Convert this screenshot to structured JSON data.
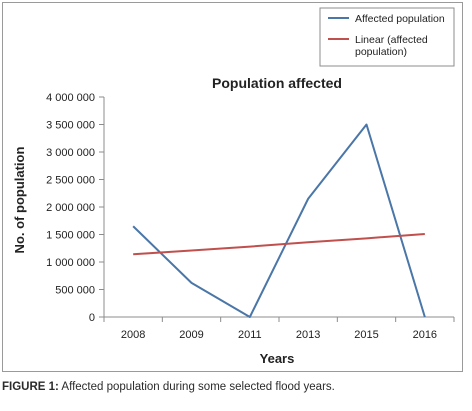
{
  "caption": {
    "label": "FIGURE 1:",
    "text": " Affected population during some selected flood years."
  },
  "chart_data": {
    "type": "line",
    "title": "Population affected",
    "xlabel": "Years",
    "ylabel": "No. of population",
    "categories": [
      "2008",
      "2009",
      "2011",
      "2013",
      "2015",
      "2016"
    ],
    "ylim": [
      0,
      4000000
    ],
    "yticks": [
      0,
      500000,
      1000000,
      1500000,
      2000000,
      2500000,
      3000000,
      3500000,
      4000000
    ],
    "ytick_labels": [
      "0",
      "500 000",
      "1 000 000",
      "1 500 000",
      "2 000 000",
      "2 500 000",
      "3 000 000",
      "3 500 000",
      "4 000 000"
    ],
    "grid": false,
    "legend_position": "top-right",
    "series": [
      {
        "name": "Affected population",
        "color": "#4a76a8",
        "values": [
          1650000,
          620000,
          0,
          2150000,
          3500000,
          0
        ]
      },
      {
        "name": "Linear (affected population)",
        "legend_lines": [
          "Linear (affected",
          "population)"
        ],
        "color": "#c0504d",
        "trend": true,
        "values": [
          1140000,
          1210000,
          1280000,
          1360000,
          1430000,
          1510000
        ]
      }
    ]
  }
}
